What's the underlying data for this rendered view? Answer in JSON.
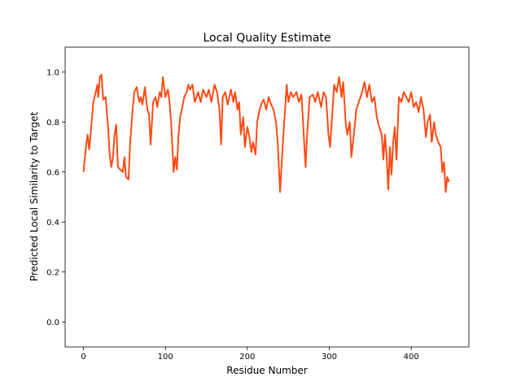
{
  "chart_data": {
    "type": "line",
    "title": "Local Quality Estimate",
    "x_label": "Residue Number",
    "y_label": "Predicted Local Similarity to Target",
    "color": "#ff4a14",
    "x": [
      0,
      3,
      5,
      7,
      10,
      12,
      15,
      17,
      18,
      20,
      22,
      24,
      27,
      30,
      32,
      34,
      36,
      38,
      40,
      42,
      45,
      48,
      50,
      52,
      55,
      57,
      60,
      62,
      65,
      68,
      70,
      72,
      75,
      78,
      80,
      82,
      85,
      88,
      90,
      93,
      95,
      97,
      100,
      103,
      105,
      107,
      110,
      112,
      114,
      116,
      118,
      120,
      123,
      126,
      128,
      130,
      133,
      136,
      140,
      143,
      146,
      150,
      153,
      156,
      160,
      163,
      166,
      168,
      170,
      173,
      176,
      180,
      183,
      185,
      188,
      190,
      192,
      195,
      197,
      200,
      202,
      205,
      207,
      210,
      212,
      215,
      218,
      220,
      223,
      226,
      229,
      232,
      235,
      237,
      240,
      242,
      245,
      248,
      250,
      253,
      256,
      260,
      263,
      266,
      268,
      271,
      273,
      276,
      280,
      283,
      286,
      290,
      293,
      296,
      299,
      301,
      303,
      306,
      309,
      312,
      315,
      317,
      320,
      322,
      325,
      327,
      330,
      333,
      336,
      340,
      343,
      346,
      349,
      352,
      355,
      358,
      361,
      364,
      366,
      368,
      370,
      372,
      374,
      376,
      378,
      380,
      382,
      385,
      388,
      391,
      394,
      397,
      400,
      403,
      406,
      409,
      412,
      415,
      418,
      420,
      423,
      425,
      428,
      430,
      433,
      436,
      438,
      440,
      442,
      444,
      446
    ],
    "values": [
      0.6,
      0.7,
      0.75,
      0.69,
      0.8,
      0.88,
      0.92,
      0.95,
      0.9,
      0.98,
      0.99,
      0.89,
      0.9,
      0.78,
      0.67,
      0.62,
      0.66,
      0.75,
      0.79,
      0.62,
      0.61,
      0.6,
      0.66,
      0.58,
      0.57,
      0.72,
      0.85,
      0.92,
      0.94,
      0.88,
      0.9,
      0.87,
      0.94,
      0.85,
      0.83,
      0.71,
      0.88,
      0.9,
      0.86,
      0.92,
      0.9,
      0.98,
      0.9,
      0.93,
      0.88,
      0.8,
      0.6,
      0.66,
      0.61,
      0.75,
      0.82,
      0.85,
      0.9,
      0.92,
      0.95,
      0.93,
      0.95,
      0.88,
      0.92,
      0.88,
      0.93,
      0.9,
      0.93,
      0.88,
      0.95,
      0.92,
      0.85,
      0.71,
      0.9,
      0.92,
      0.87,
      0.93,
      0.88,
      0.92,
      0.85,
      0.88,
      0.75,
      0.82,
      0.7,
      0.78,
      0.75,
      0.68,
      0.72,
      0.67,
      0.8,
      0.85,
      0.88,
      0.89,
      0.85,
      0.9,
      0.87,
      0.85,
      0.8,
      0.72,
      0.52,
      0.64,
      0.8,
      0.95,
      0.88,
      0.92,
      0.9,
      0.92,
      0.88,
      0.91,
      0.8,
      0.62,
      0.75,
      0.9,
      0.91,
      0.88,
      0.92,
      0.86,
      0.92,
      0.9,
      0.75,
      0.7,
      0.8,
      0.95,
      0.92,
      0.98,
      0.9,
      0.96,
      0.8,
      0.75,
      0.8,
      0.66,
      0.75,
      0.85,
      0.88,
      0.92,
      0.96,
      0.9,
      0.95,
      0.88,
      0.9,
      0.82,
      0.78,
      0.75,
      0.65,
      0.75,
      0.66,
      0.53,
      0.7,
      0.59,
      0.72,
      0.78,
      0.65,
      0.9,
      0.88,
      0.92,
      0.9,
      0.88,
      0.92,
      0.86,
      0.88,
      0.84,
      0.9,
      0.85,
      0.74,
      0.8,
      0.83,
      0.72,
      0.8,
      0.75,
      0.72,
      0.7,
      0.6,
      0.64,
      0.52,
      0.58,
      0.56
    ],
    "xlim": [
      -22.4,
      470.4
    ],
    "xticks": [
      0,
      100,
      200,
      300,
      400
    ],
    "ylim": [
      -0.1,
      1.1
    ],
    "yticks": [
      {
        "value": 0,
        "label": "0.0"
      },
      0.2,
      0.4,
      0.6,
      0.8,
      {
        "value": 1,
        "label": "1.0"
      }
    ]
  }
}
